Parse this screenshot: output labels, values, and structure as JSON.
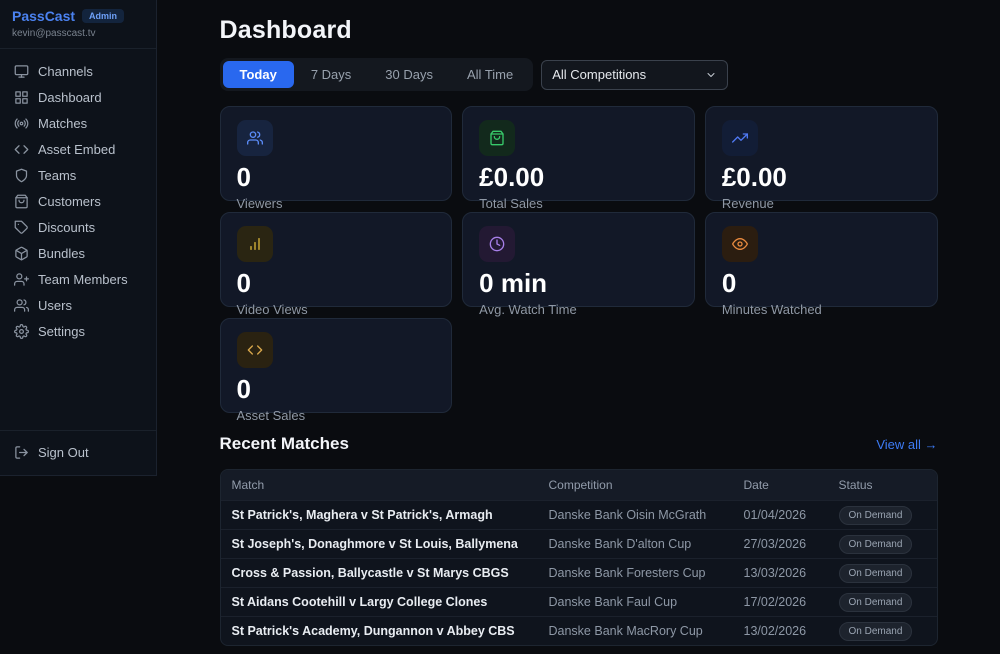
{
  "sidebar": {
    "brand": "PassCast",
    "badge": "Admin",
    "email": "kevin@passcast.tv",
    "items": [
      {
        "label": "Channels",
        "icon": "monitor"
      },
      {
        "label": "Dashboard",
        "icon": "grid"
      },
      {
        "label": "Matches",
        "icon": "broadcast"
      },
      {
        "label": "Asset Embed",
        "icon": "code"
      },
      {
        "label": "Teams",
        "icon": "shield"
      },
      {
        "label": "Customers",
        "icon": "bag"
      },
      {
        "label": "Discounts",
        "icon": "tag"
      },
      {
        "label": "Bundles",
        "icon": "package"
      },
      {
        "label": "Team Members",
        "icon": "user-plus"
      },
      {
        "label": "Users",
        "icon": "users"
      },
      {
        "label": "Settings",
        "icon": "gear"
      }
    ],
    "sign_out": {
      "label": "Sign Out",
      "icon": "log-out"
    }
  },
  "header": {
    "title": "Dashboard"
  },
  "filters": {
    "range_tabs": [
      {
        "label": "Today",
        "active": true
      },
      {
        "label": "7 Days",
        "active": false
      },
      {
        "label": "30 Days",
        "active": false
      },
      {
        "label": "All Time",
        "active": false
      }
    ],
    "competition_select": {
      "value": "All Competitions",
      "icon": "chevron-down"
    }
  },
  "stats": [
    {
      "value": "0",
      "label": "Viewers",
      "icon": "users",
      "color": "#5b8cf8",
      "chip_bg": "#17243f"
    },
    {
      "value": "£0.00",
      "label": "Total Sales",
      "icon": "bag",
      "color": "#38c96a",
      "chip_bg": "#12291c"
    },
    {
      "value": "£0.00",
      "label": "Revenue",
      "icon": "trending-up",
      "color": "#4f79f2",
      "chip_bg": "#121d36"
    },
    {
      "value": "0",
      "label": "Video Views",
      "icon": "bar-chart",
      "color": "#d8b53a",
      "chip_bg": "#2a2512"
    },
    {
      "value": "0 min",
      "label": "Avg. Watch Time",
      "icon": "clock",
      "color": "#a77fe8",
      "chip_bg": "#231933"
    },
    {
      "value": "0",
      "label": "Minutes Watched",
      "icon": "eye",
      "color": "#e98b3f",
      "chip_bg": "#2b1d10"
    },
    {
      "value": "0",
      "label": "Asset Sales",
      "icon": "code",
      "color": "#d9a84c",
      "chip_bg": "#2a2211"
    }
  ],
  "recent_matches": {
    "title": "Recent Matches",
    "view_all": "View all →",
    "columns": [
      "Match",
      "Competition",
      "Date",
      "Status"
    ],
    "rows": [
      {
        "match": "St Patrick's, Maghera v St Patrick's, Armagh",
        "competition": "Danske Bank Oisin McGrath",
        "date": "01/04/2026",
        "status": "On Demand"
      },
      {
        "match": "St Joseph's, Donaghmore v St Louis, Ballymena",
        "competition": "Danske Bank D'alton Cup",
        "date": "27/03/2026",
        "status": "On Demand"
      },
      {
        "match": "Cross & Passion, Ballycastle v St Marys CBGS",
        "competition": "Danske Bank Foresters Cup",
        "date": "13/03/2026",
        "status": "On Demand"
      },
      {
        "match": "St Aidans Cootehill v Largy College Clones",
        "competition": "Danske Bank Faul Cup",
        "date": "17/02/2026",
        "status": "On Demand"
      },
      {
        "match": "St Patrick's Academy, Dungannon v Abbey CBS",
        "competition": "Danske Bank MacRory Cup",
        "date": "13/02/2026",
        "status": "On Demand"
      }
    ]
  },
  "colors": {
    "accent": "#2968ef",
    "link": "#3d7bf5",
    "brand": "#4b82f0",
    "page_bg": "#0a0c10",
    "sidebar_bg": "#0d121a",
    "card_bg": "#121827"
  }
}
